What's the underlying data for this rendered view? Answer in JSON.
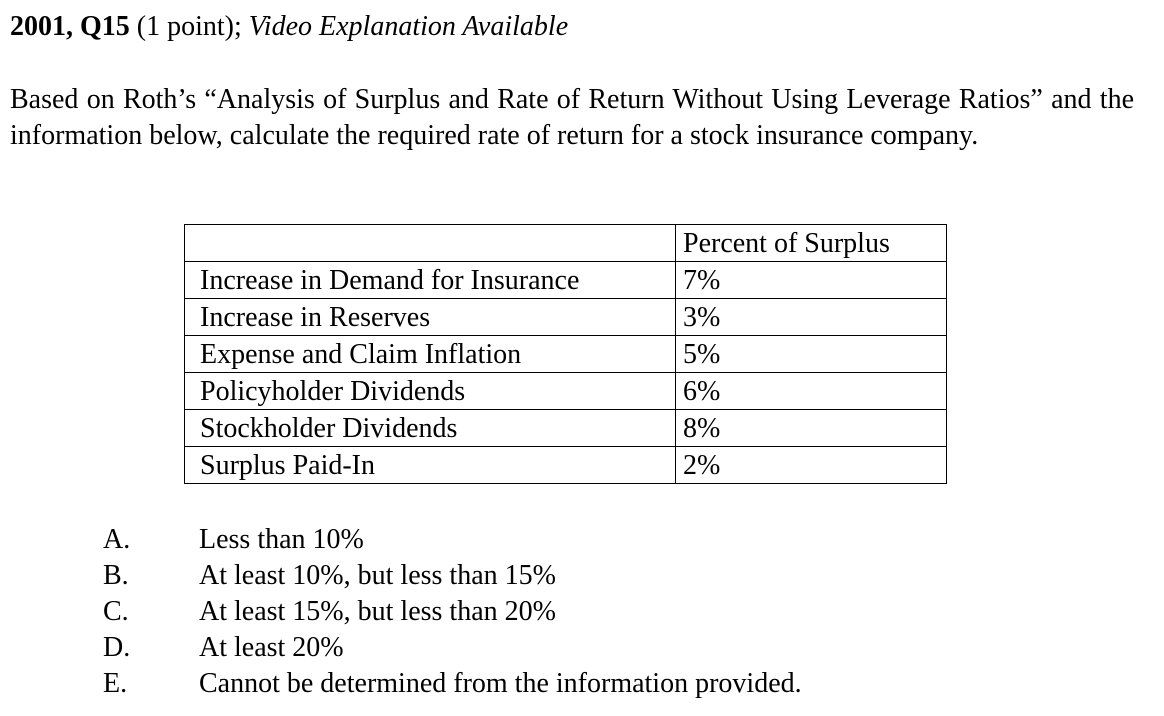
{
  "header": {
    "question_id": "2001, Q15",
    "points": " (1 point); ",
    "video_note": "Video Explanation Available"
  },
  "question": {
    "text": "Based on Roth’s “Analysis of Surplus and Rate of Return Without Using Leverage Ratios” and the information below, calculate the required rate of return for a stock insurance company."
  },
  "table": {
    "column_header": "Percent of Surplus",
    "rows": [
      {
        "label": "Increase in Demand for Insurance",
        "value": "7%"
      },
      {
        "label": "Increase in Reserves",
        "value": "3%"
      },
      {
        "label": "Expense and Claim Inflation",
        "value": "5%"
      },
      {
        "label": "Policyholder Dividends",
        "value": "6%"
      },
      {
        "label": "Stockholder Dividends",
        "value": "8%"
      },
      {
        "label": "Surplus Paid-In",
        "value": "2%"
      }
    ]
  },
  "choices": [
    {
      "letter": "A.",
      "text": "Less than 10%"
    },
    {
      "letter": "B.",
      "text": "At least 10%, but less than 15%"
    },
    {
      "letter": "C.",
      "text": "At least 15%, but less than 20%"
    },
    {
      "letter": "D.",
      "text": "At least 20%"
    },
    {
      "letter": "E.",
      "text": "Cannot be determined from the information provided."
    }
  ]
}
